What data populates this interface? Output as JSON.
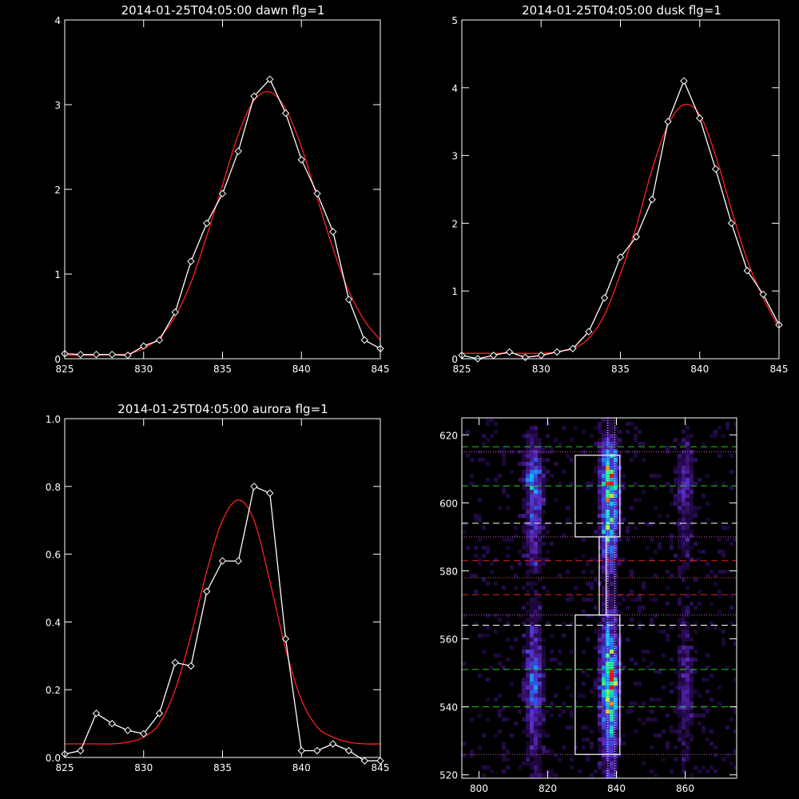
{
  "chart_data": [
    {
      "type": "line",
      "title": "2014-01-25T04:05:00 dawn flg=1",
      "xlim": [
        825,
        845
      ],
      "ylim": [
        0,
        4
      ],
      "xticks": [
        825,
        830,
        835,
        840,
        845
      ],
      "yticks": [
        0,
        1,
        2,
        3,
        4
      ],
      "grid": false,
      "series": [
        {
          "style": "white line with diamond markers",
          "color": "#ffffff",
          "x": [
            825,
            826,
            827,
            828,
            829,
            830,
            831,
            832,
            833,
            834,
            835,
            836,
            837,
            838,
            839,
            840,
            841,
            842,
            843,
            844,
            845
          ],
          "y": [
            0.06,
            0.05,
            0.05,
            0.05,
            0.04,
            0.15,
            0.22,
            0.55,
            1.15,
            1.6,
            1.95,
            2.45,
            3.1,
            3.3,
            2.9,
            2.35,
            1.95,
            1.5,
            0.7,
            0.22,
            0.12
          ]
        },
        {
          "style": "red fitted curve",
          "color": "#ff2020",
          "x": [
            825,
            826,
            827,
            828,
            829,
            830,
            831,
            832,
            833,
            834,
            835,
            836,
            837,
            838,
            839,
            840,
            841,
            842,
            843,
            844,
            845
          ],
          "y": [
            0.04,
            0.04,
            0.04,
            0.05,
            0.06,
            0.12,
            0.25,
            0.5,
            0.9,
            1.45,
            2.05,
            2.65,
            3.05,
            3.15,
            2.95,
            2.5,
            1.9,
            1.3,
            0.8,
            0.45,
            0.22
          ]
        }
      ]
    },
    {
      "type": "line",
      "title": "2014-01-25T04:05:00 dusk flg=1",
      "xlim": [
        825,
        845
      ],
      "ylim": [
        0,
        5
      ],
      "xticks": [
        825,
        830,
        835,
        840,
        845
      ],
      "yticks": [
        0,
        1,
        2,
        3,
        4,
        5
      ],
      "grid": false,
      "series": [
        {
          "style": "white line with diamond markers",
          "color": "#ffffff",
          "x": [
            825,
            826,
            827,
            828,
            829,
            830,
            831,
            832,
            833,
            834,
            835,
            836,
            837,
            838,
            839,
            840,
            841,
            842,
            843,
            844,
            845
          ],
          "y": [
            0.05,
            0.0,
            0.05,
            0.1,
            0.02,
            0.05,
            0.1,
            0.15,
            0.4,
            0.9,
            1.5,
            1.8,
            2.35,
            3.5,
            4.1,
            3.55,
            2.8,
            2.0,
            1.3,
            0.95,
            0.5
          ]
        },
        {
          "style": "red fitted curve",
          "color": "#ff2020",
          "x": [
            825,
            826,
            827,
            828,
            829,
            830,
            831,
            832,
            833,
            834,
            835,
            836,
            837,
            838,
            839,
            840,
            841,
            842,
            843,
            844,
            845
          ],
          "y": [
            0.08,
            0.08,
            0.08,
            0.08,
            0.08,
            0.08,
            0.1,
            0.15,
            0.3,
            0.65,
            1.25,
            1.95,
            2.8,
            3.45,
            3.75,
            3.6,
            3.0,
            2.2,
            1.45,
            0.9,
            0.45
          ]
        }
      ]
    },
    {
      "type": "line",
      "title": "2014-01-25T04:05:00 aurora flg=1",
      "xlim": [
        825,
        845
      ],
      "ylim": [
        0,
        1.0
      ],
      "xticks": [
        825,
        830,
        835,
        840,
        845
      ],
      "yticks": [
        0.0,
        0.2,
        0.4,
        0.6,
        0.8,
        1.0
      ],
      "grid": false,
      "series": [
        {
          "style": "white line with diamond markers",
          "color": "#ffffff",
          "x": [
            825,
            826,
            827,
            828,
            829,
            830,
            831,
            832,
            833,
            834,
            835,
            836,
            837,
            838,
            839,
            840,
            841,
            842,
            843,
            844,
            845
          ],
          "y": [
            0.01,
            0.02,
            0.13,
            0.1,
            0.08,
            0.07,
            0.13,
            0.28,
            0.27,
            0.49,
            0.58,
            0.58,
            0.8,
            0.78,
            0.35,
            0.02,
            0.02,
            0.04,
            0.02,
            -0.01,
            -0.01
          ]
        },
        {
          "style": "red fitted curve",
          "color": "#ff2020",
          "x": [
            825,
            826,
            827,
            828,
            829,
            830,
            831,
            832,
            833,
            834,
            835,
            836,
            837,
            838,
            839,
            840,
            841,
            842,
            843,
            844,
            845
          ],
          "y": [
            0.04,
            0.04,
            0.04,
            0.04,
            0.045,
            0.06,
            0.1,
            0.2,
            0.36,
            0.55,
            0.7,
            0.76,
            0.7,
            0.52,
            0.32,
            0.17,
            0.09,
            0.06,
            0.045,
            0.04,
            0.04
          ]
        }
      ]
    },
    {
      "type": "heatmap",
      "colormap": "black-purple-blue-cyan-green-yellow-red",
      "xlim": [
        795,
        875
      ],
      "ylim": [
        519,
        625
      ],
      "xticks": [
        800,
        820,
        840,
        860
      ],
      "yticks": [
        520,
        540,
        560,
        580,
        600,
        620
      ],
      "grid": false,
      "emission_columns": [
        {
          "x_center": 816,
          "strength": 0.55
        },
        {
          "x_center": 838,
          "strength": 0.95
        },
        {
          "x_center": 860,
          "strength": 0.3
        }
      ],
      "intensity_profile": [
        {
          "y": 525,
          "level": 0.3
        },
        {
          "y": 540,
          "level": 0.75
        },
        {
          "y": 548,
          "level": 0.95
        },
        {
          "y": 560,
          "level": 0.55
        },
        {
          "y": 575,
          "level": 0.22
        },
        {
          "y": 590,
          "level": 0.6
        },
        {
          "y": 600,
          "level": 0.8
        },
        {
          "y": 607,
          "level": 1.0
        },
        {
          "y": 615,
          "level": 0.6
        },
        {
          "y": 622,
          "level": 0.15
        }
      ],
      "vertical_dotted_lines": [
        837.5,
        839.5
      ],
      "horizontal_lines": [
        {
          "y": 616.5,
          "color": "#20d020",
          "style": "dashed"
        },
        {
          "y": 605,
          "color": "#20d020",
          "style": "dashed"
        },
        {
          "y": 551,
          "color": "#20d020",
          "style": "dashed"
        },
        {
          "y": 540,
          "color": "#20d020",
          "style": "dashed"
        },
        {
          "y": 594,
          "color": "#ffffff",
          "style": "dashed"
        },
        {
          "y": 564,
          "color": "#ffffff",
          "style": "dashed"
        },
        {
          "y": 583,
          "color": "#e02020",
          "style": "dashed"
        },
        {
          "y": 573,
          "color": "#e02020",
          "style": "dashed"
        },
        {
          "y": 615,
          "color": "#c060c0",
          "style": "dotted"
        },
        {
          "y": 590,
          "color": "#c060c0",
          "style": "dotted"
        },
        {
          "y": 567,
          "color": "#c060c0",
          "style": "dotted"
        },
        {
          "y": 526,
          "color": "#c060c0",
          "style": "dotted"
        },
        {
          "y": 578,
          "color": "#c06060",
          "style": "dotted"
        }
      ],
      "boxes": [
        {
          "x": [
            828,
            841
          ],
          "y": [
            590,
            614
          ]
        },
        {
          "x": [
            835,
            837
          ],
          "y": [
            567,
            590
          ]
        },
        {
          "x": [
            828,
            841
          ],
          "y": [
            526,
            567
          ]
        }
      ]
    }
  ]
}
